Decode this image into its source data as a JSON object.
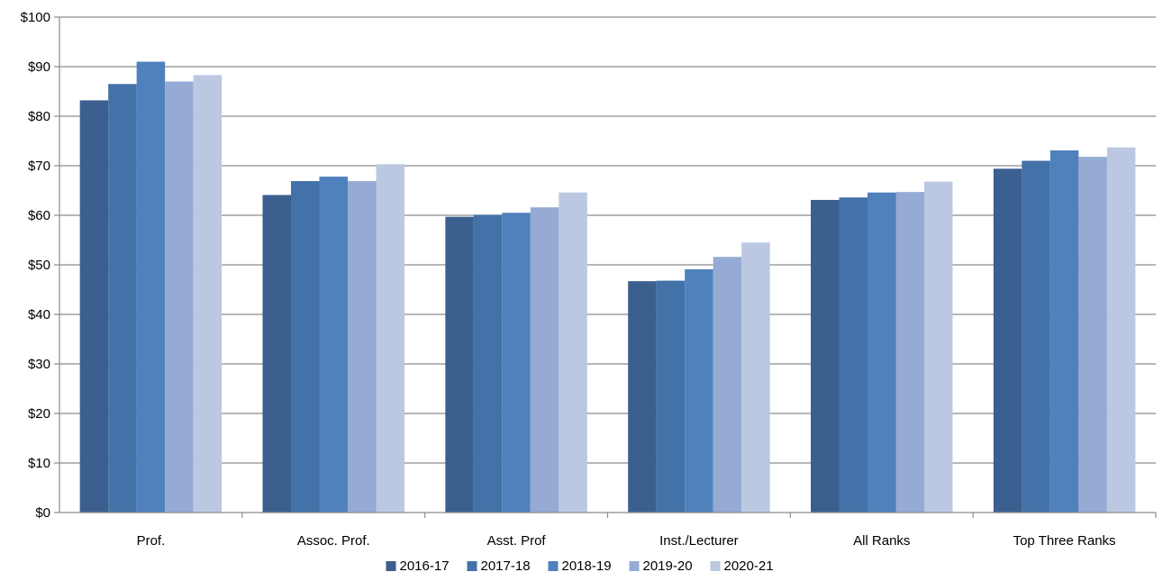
{
  "chart_data": {
    "type": "bar",
    "categories": [
      "Prof.",
      "Assoc. Prof.",
      "Asst. Prof",
      "Inst./Lecturer",
      "All Ranks",
      "Top Three Ranks"
    ],
    "series": [
      {
        "name": "2016-17",
        "color": "#3b5f8f",
        "values": [
          83.2,
          64.1,
          59.7,
          46.7,
          63.1,
          69.4
        ]
      },
      {
        "name": "2017-18",
        "color": "#4372a8",
        "values": [
          86.5,
          66.9,
          60.1,
          46.8,
          63.6,
          71.0
        ]
      },
      {
        "name": "2018-19",
        "color": "#4f81bd",
        "values": [
          91.0,
          67.8,
          60.5,
          49.1,
          64.6,
          73.1
        ]
      },
      {
        "name": "2019-20",
        "color": "#95abd4",
        "values": [
          87.0,
          66.9,
          61.6,
          51.6,
          64.7,
          71.8
        ]
      },
      {
        "name": "2020-21",
        "color": "#bcc8e2",
        "values": [
          88.3,
          70.3,
          64.6,
          54.5,
          66.8,
          73.7
        ]
      }
    ],
    "y_ticks": [
      "$0",
      "$10",
      "$20",
      "$30",
      "$40",
      "$50",
      "$60",
      "$70",
      "$80",
      "$90",
      "$100"
    ],
    "ylim": [
      0,
      100
    ],
    "grid": true,
    "legend_position": "bottom",
    "title": "",
    "xlabel": "",
    "ylabel": ""
  }
}
